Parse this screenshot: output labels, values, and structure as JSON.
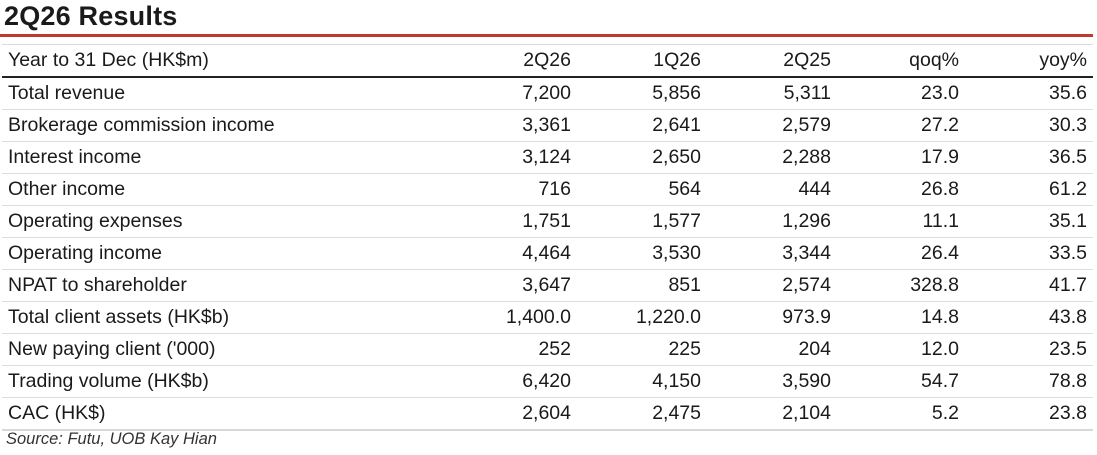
{
  "title": "2Q26 Results",
  "header": [
    "Year to 31 Dec (HK$m)",
    "2Q26",
    "1Q26",
    "2Q25",
    "qoq%",
    "yoy%"
  ],
  "rows": [
    {
      "label": "Total revenue",
      "sub": false,
      "values": [
        "7,200",
        "5,856",
        "5,311",
        "23.0",
        "35.6"
      ]
    },
    {
      "label": "Brokerage commission income",
      "sub": true,
      "values": [
        "3,361",
        "2,641",
        "2,579",
        "27.2",
        "30.3"
      ]
    },
    {
      "label": "Interest income",
      "sub": true,
      "values": [
        "3,124",
        "2,650",
        "2,288",
        "17.9",
        "36.5"
      ]
    },
    {
      "label": "Other income",
      "sub": true,
      "values": [
        "716",
        "564",
        "444",
        "26.8",
        "61.2"
      ]
    },
    {
      "label": "Operating expenses",
      "sub": false,
      "values": [
        "1,751",
        "1,577",
        "1,296",
        "11.1",
        "35.1"
      ]
    },
    {
      "label": "Operating income",
      "sub": false,
      "values": [
        "4,464",
        "3,530",
        "3,344",
        "26.4",
        "33.5"
      ]
    },
    {
      "label": "NPAT to shareholder",
      "sub": false,
      "values": [
        "3,647",
        "851",
        "2,574",
        "328.8",
        "41.7"
      ]
    },
    {
      "label": "Total client assets (HK$b)",
      "sub": false,
      "values": [
        "1,400.0",
        "1,220.0",
        "973.9",
        "14.8",
        "43.8"
      ]
    },
    {
      "label": "New paying client ('000)",
      "sub": false,
      "values": [
        "252",
        "225",
        "204",
        "12.0",
        "23.5"
      ]
    },
    {
      "label": "Trading volume (HK$b)",
      "sub": false,
      "values": [
        "6,420",
        "4,150",
        "3,590",
        "54.7",
        "78.8"
      ]
    },
    {
      "label": "CAC (HK$)",
      "sub": false,
      "values": [
        "2,604",
        "2,475",
        "2,104",
        "5.2",
        "23.8"
      ]
    }
  ],
  "source": "Source: Futu, UOB Kay Hian",
  "colors": {
    "accent_rule": "#c0392b"
  }
}
